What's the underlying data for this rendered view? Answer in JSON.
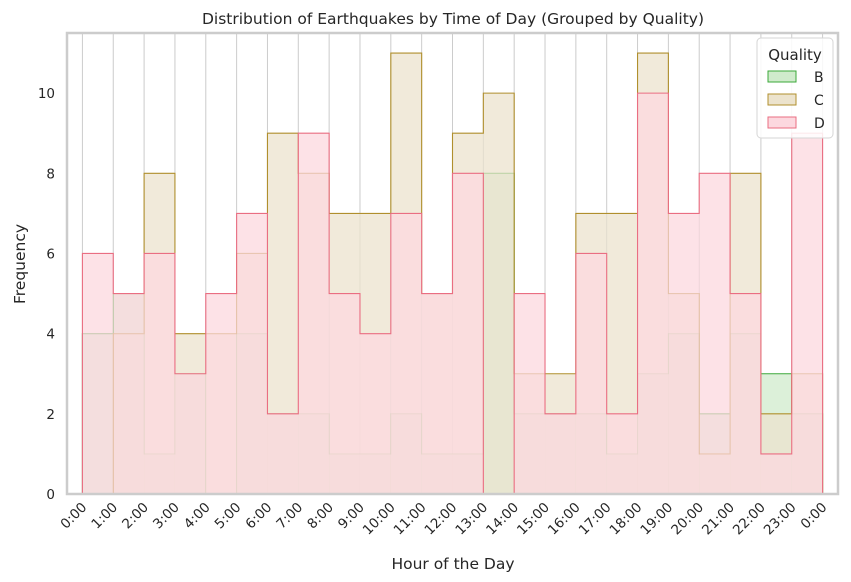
{
  "chart_data": {
    "type": "histogram-step",
    "title": "Distribution of Earthquakes by Time of Day (Grouped by Quality)",
    "xlabel": "Hour of the Day",
    "ylabel": "Frequency",
    "x_ticks": [
      "0:00",
      "1:00",
      "2:00",
      "3:00",
      "4:00",
      "5:00",
      "6:00",
      "7:00",
      "8:00",
      "9:00",
      "10:00",
      "11:00",
      "12:00",
      "13:00",
      "14:00",
      "15:00",
      "16:00",
      "17:00",
      "18:00",
      "19:00",
      "20:00",
      "21:00",
      "22:00",
      "23:00",
      "0:00"
    ],
    "y_ticks": [
      0,
      2,
      4,
      6,
      8,
      10
    ],
    "ylim": [
      0,
      11.5
    ],
    "xlim": [
      -0.5,
      24.5
    ],
    "grid": "vertical",
    "bins": 24,
    "legend": {
      "title": "Quality",
      "placement": "top-right"
    },
    "series": [
      {
        "name": "B",
        "color": "#3ba83a",
        "fill": "#d0ebcc",
        "values": [
          4,
          5,
          1,
          3,
          0,
          4,
          2,
          2,
          1,
          1,
          2,
          1,
          1,
          8,
          2,
          2,
          2,
          1,
          3,
          4,
          2,
          4,
          3,
          2
        ]
      },
      {
        "name": "C",
        "color": "#b08f2d",
        "fill": "#ece3cd",
        "values": [
          0,
          4,
          8,
          4,
          4,
          6,
          9,
          8,
          7,
          7,
          11,
          5,
          9,
          10,
          3,
          3,
          7,
          7,
          11,
          5,
          1,
          8,
          2,
          3
        ]
      },
      {
        "name": "D",
        "color": "#ea6e82",
        "fill": "#fcd8df",
        "values": [
          6,
          5,
          6,
          3,
          5,
          7,
          2,
          9,
          5,
          4,
          7,
          5,
          8,
          0,
          5,
          2,
          6,
          2,
          10,
          7,
          8,
          5,
          1,
          9
        ]
      }
    ]
  }
}
